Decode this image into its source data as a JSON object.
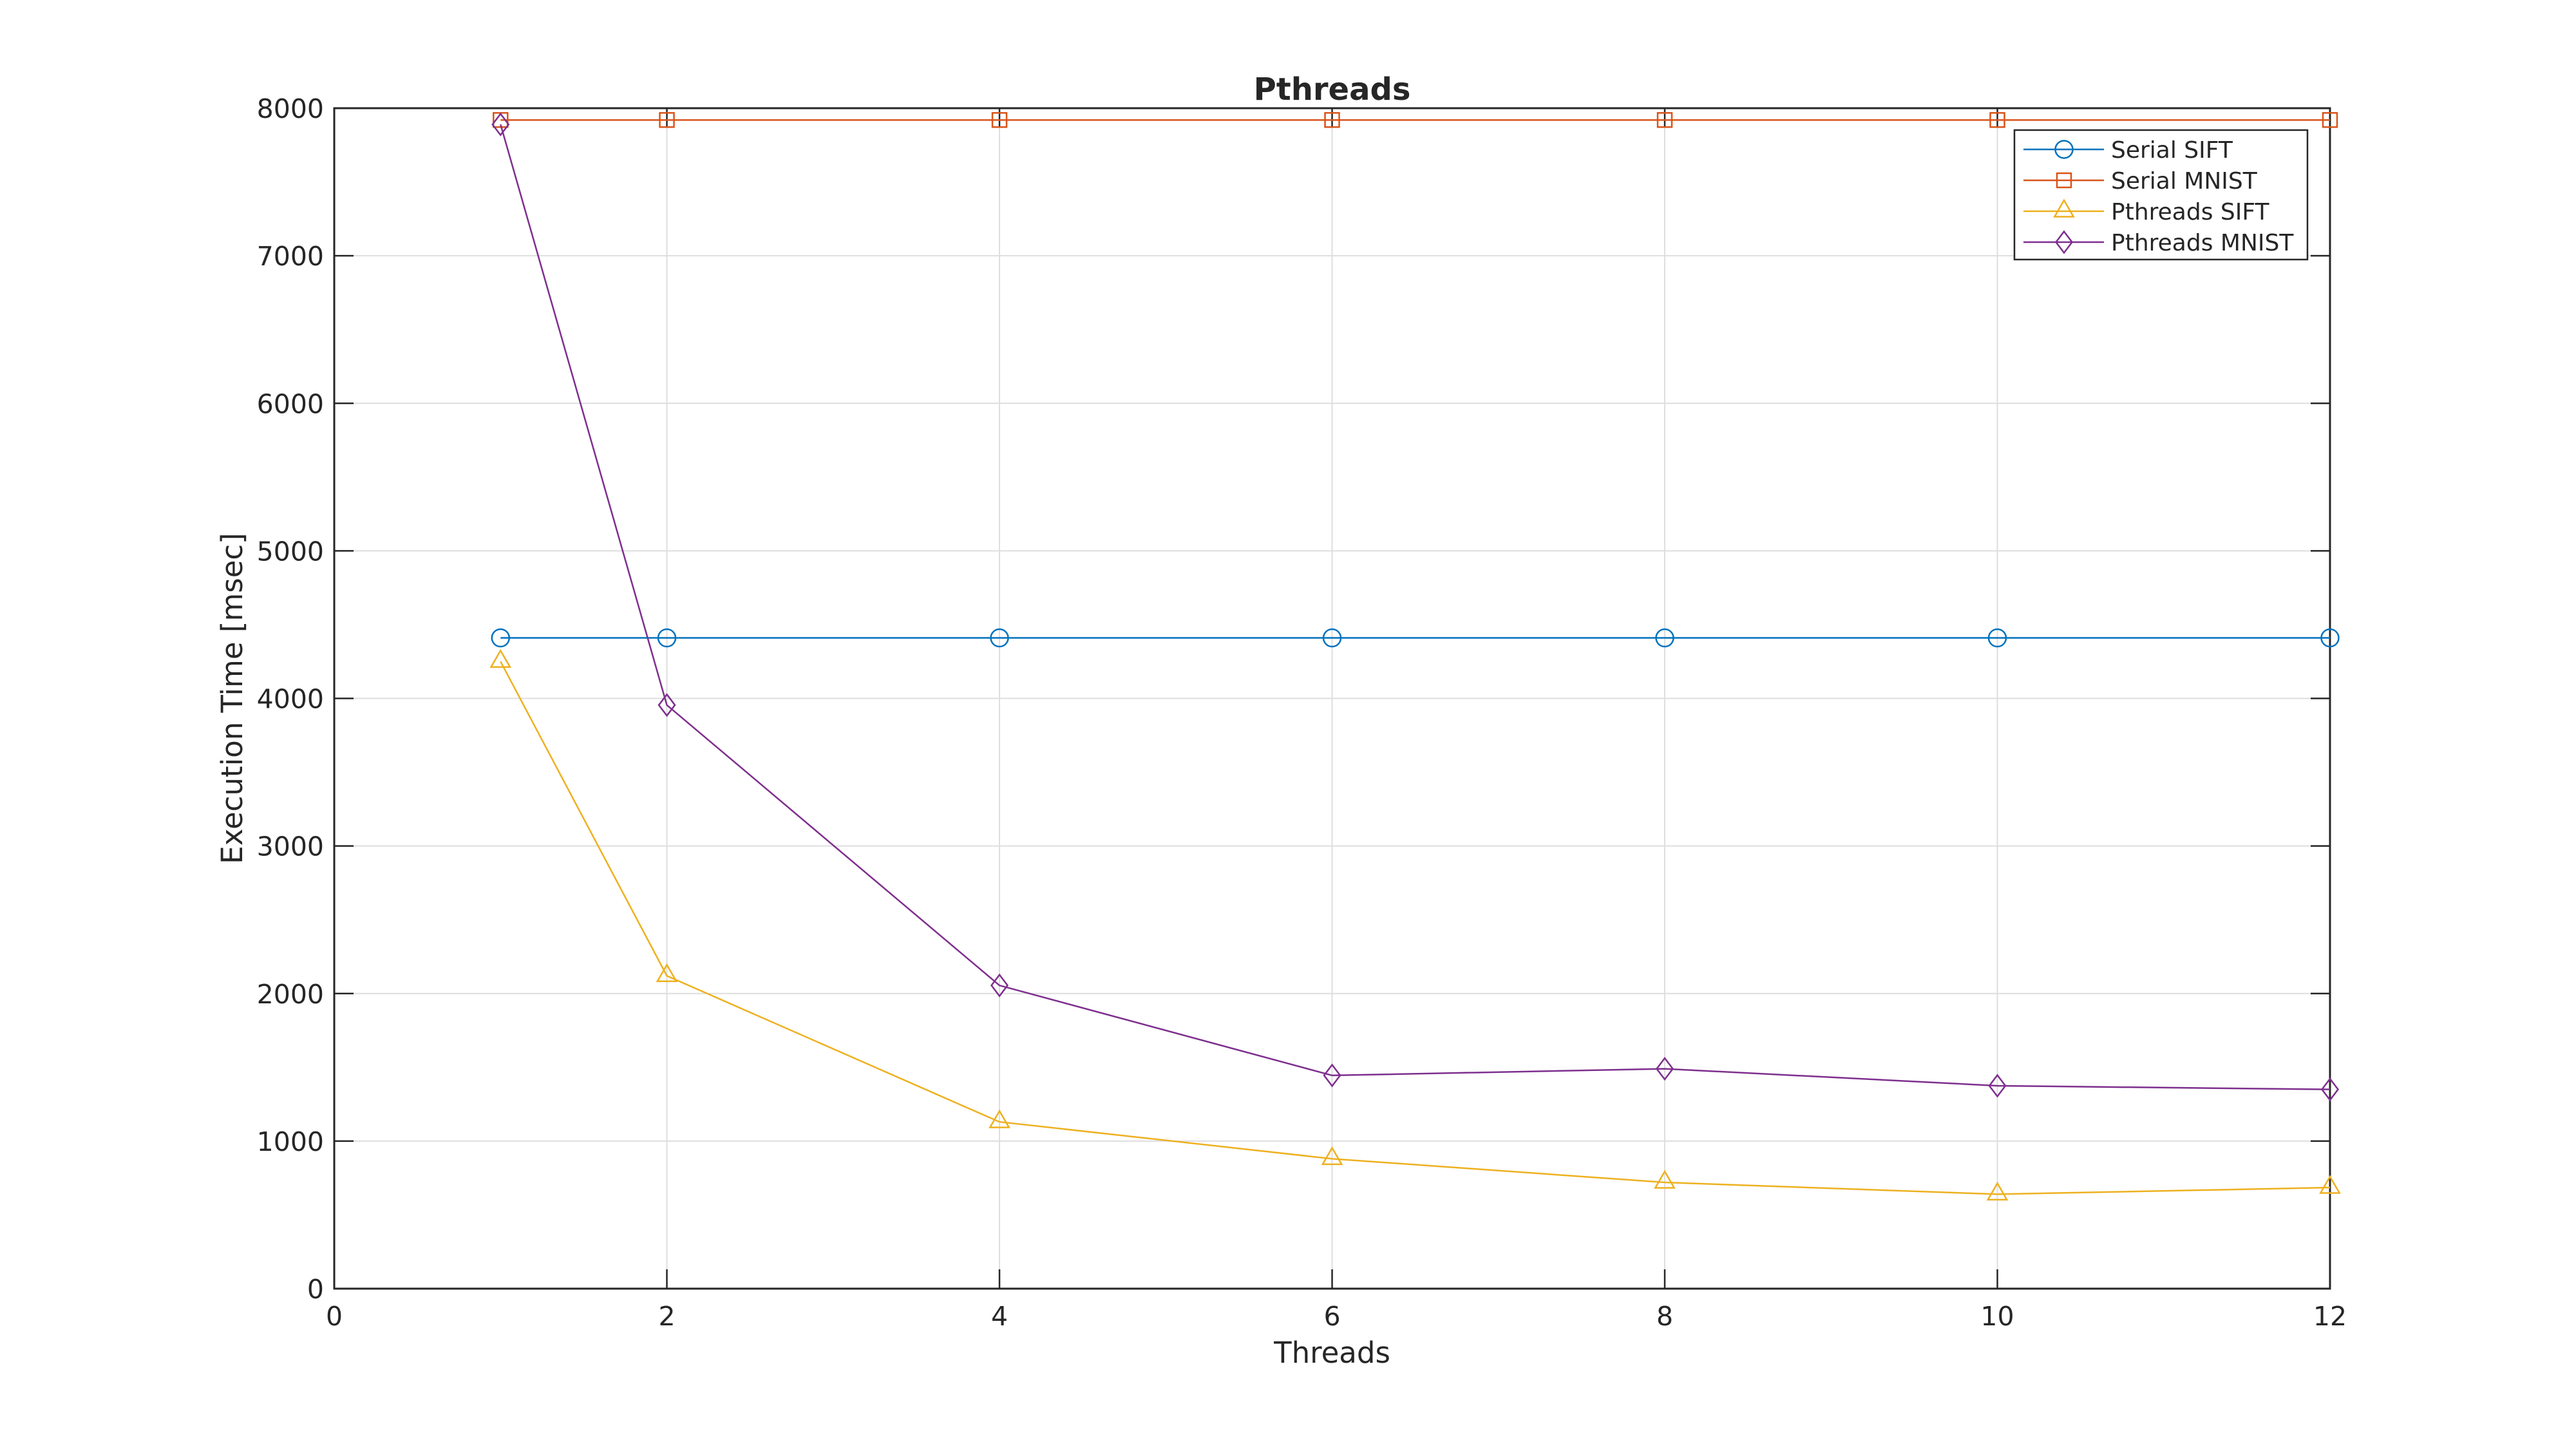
{
  "chart_data": {
    "type": "line",
    "title": "Pthreads",
    "xlabel": "Threads",
    "ylabel": "Execution Time [msec]",
    "xlim": [
      0,
      12
    ],
    "ylim": [
      0,
      8000
    ],
    "xticks": [
      0,
      2,
      4,
      6,
      8,
      10,
      12
    ],
    "yticks": [
      0,
      1000,
      2000,
      3000,
      4000,
      5000,
      6000,
      7000,
      8000
    ],
    "grid": true,
    "legend_position": "northeast",
    "x": [
      1,
      2,
      4,
      6,
      8,
      10,
      12
    ],
    "series": [
      {
        "name": "Serial SIFT",
        "marker": "circle",
        "color": "#0072BD",
        "values": [
          4410,
          4410,
          4410,
          4410,
          4410,
          4410,
          4410
        ]
      },
      {
        "name": "Serial MNIST",
        "marker": "square",
        "color": "#D95319",
        "values": [
          7920,
          7920,
          7920,
          7920,
          7920,
          7920,
          7920
        ]
      },
      {
        "name": "Pthreads SIFT",
        "marker": "triangle",
        "color": "#EDB120",
        "values": [
          4250,
          2120,
          1130,
          880,
          720,
          640,
          685
        ]
      },
      {
        "name": "Pthreads MNIST",
        "marker": "diamond",
        "color": "#7E2F8E",
        "values": [
          7890,
          3955,
          2055,
          1445,
          1490,
          1375,
          1350
        ]
      }
    ],
    "axis_color": "#262626",
    "grid_color": "#DEDEDE",
    "background": "#FFFFFF"
  }
}
